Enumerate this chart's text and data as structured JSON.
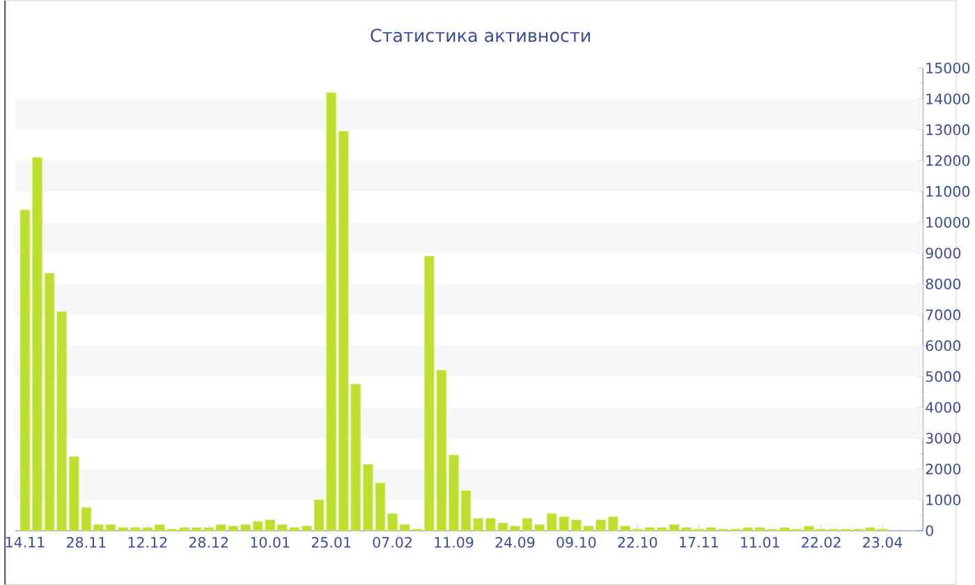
{
  "chart_data": {
    "type": "bar",
    "title": "Статистика активности",
    "categories": [
      "14.11",
      null,
      null,
      null,
      null,
      "28.11",
      null,
      null,
      null,
      null,
      "12.12",
      null,
      null,
      null,
      null,
      "28.12",
      null,
      null,
      null,
      null,
      "10.01",
      null,
      null,
      null,
      null,
      "25.01",
      null,
      null,
      null,
      null,
      "07.02",
      null,
      null,
      null,
      null,
      "11.09",
      null,
      null,
      null,
      null,
      "24.09",
      null,
      null,
      null,
      null,
      "09.10",
      null,
      null,
      null,
      null,
      "22.10",
      null,
      null,
      null,
      null,
      "17.11",
      null,
      null,
      null,
      null,
      "11.01",
      null,
      null,
      null,
      null,
      "22.02",
      null,
      null,
      null,
      null,
      "23.04"
    ],
    "values": [
      10400,
      12100,
      8350,
      7100,
      2400,
      750,
      200,
      200,
      100,
      100,
      100,
      200,
      50,
      100,
      100,
      100,
      200,
      150,
      200,
      300,
      350,
      200,
      100,
      150,
      1000,
      14200,
      12950,
      4750,
      2150,
      1550,
      550,
      200,
      50,
      8900,
      5200,
      2450,
      1300,
      400,
      400,
      250,
      150,
      400,
      200,
      550,
      450,
      350,
      150,
      350,
      450,
      150,
      50,
      100,
      100,
      200,
      100,
      50,
      100,
      50,
      50,
      100,
      100,
      50,
      100,
      50,
      150,
      50,
      50,
      50,
      50,
      100,
      50
    ],
    "color": "#bde02f",
    "ylim": [
      0,
      15000
    ],
    "yticks": [
      0,
      1000,
      2000,
      3000,
      4000,
      5000,
      6000,
      7000,
      8000,
      9000,
      10000,
      11000,
      12000,
      13000,
      14000,
      15000
    ],
    "bands": [
      {
        "axis": "y",
        "from": 1000,
        "to": 2000,
        "color": "#f7f7f7"
      },
      {
        "axis": "y",
        "from": 3000,
        "to": 4000,
        "color": "#f7f7f7"
      },
      {
        "axis": "y",
        "from": 5000,
        "to": 6000,
        "color": "#f7f7f7"
      },
      {
        "axis": "y",
        "from": 7000,
        "to": 8000,
        "color": "#f7f7f7"
      },
      {
        "axis": "y",
        "from": 9000,
        "to": 10000,
        "color": "#f7f7f7"
      },
      {
        "axis": "y",
        "from": 11000,
        "to": 12000,
        "color": "#f7f7f7"
      },
      {
        "axis": "y",
        "from": 13000,
        "to": 14000,
        "color": "#f7f7f7"
      }
    ]
  }
}
